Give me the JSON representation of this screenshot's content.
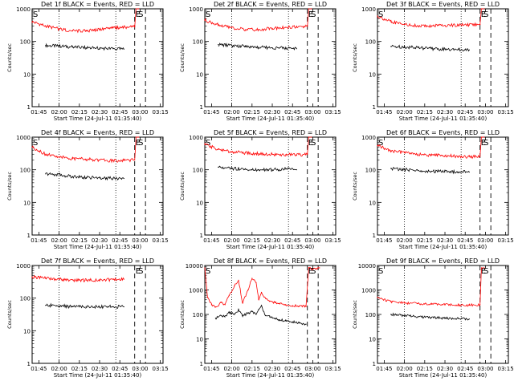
{
  "figure": {
    "shared": {
      "xlabel": "Start Time (24-Jul-11 01:35:40)",
      "ylabel": "Counts/sec",
      "xticks": [
        "01:45",
        "02:00",
        "02:15",
        "02:30",
        "02:45",
        "03:00",
        "03:15"
      ],
      "markers": {
        "start": "S",
        "end": "E"
      },
      "colors": {
        "events": "#000000",
        "lld": "#ff0000",
        "axes": "#000000"
      }
    }
  },
  "chart_data": [
    {
      "type": "line",
      "title": "Det 1f BLACK = Events, RED = LLD",
      "xlabel": "Start Time (24-Jul-11 01:35:40)",
      "ylabel": "Counts/sec",
      "yscale": "log",
      "ylim": [
        1,
        1000
      ],
      "yticks": [
        "1",
        "10",
        "100",
        "1000"
      ],
      "xticks": [
        "01:45",
        "02:00",
        "02:15",
        "02:30",
        "02:45",
        "03:00",
        "03:15"
      ],
      "x_minutes_after_0130": [
        15,
        30,
        45,
        60,
        75,
        90,
        105
      ],
      "dotted_lines_min": [
        30,
        72
      ],
      "dashed_lines_min": [
        10,
        86,
        94
      ],
      "markers": [
        {
          "label": "S",
          "x": 10
        },
        {
          "label": "E",
          "x": 86
        },
        {
          "label": "S",
          "x": 88
        }
      ],
      "series": [
        {
          "name": "Events",
          "color": "#000000",
          "x": [
            20,
            30,
            40,
            50,
            60,
            70,
            78
          ],
          "y": [
            75,
            72,
            68,
            64,
            62,
            60,
            58
          ]
        },
        {
          "name": "LLD",
          "color": "#ff0000",
          "x": [
            10,
            20,
            30,
            40,
            50,
            60,
            70,
            78,
            86,
            87,
            89
          ],
          "y": [
            400,
            300,
            240,
            210,
            210,
            230,
            260,
            270,
            280,
            1000,
            1000
          ]
        }
      ]
    },
    {
      "type": "line",
      "title": "Det 2f BLACK = Events, RED = LLD",
      "xlabel": "Start Time (24-Jul-11 01:35:40)",
      "ylabel": "Counts/sec",
      "yscale": "log",
      "ylim": [
        1,
        1000
      ],
      "yticks": [
        "1",
        "10",
        "100",
        "1000"
      ],
      "xticks": [
        "01:45",
        "02:00",
        "02:15",
        "02:30",
        "02:45",
        "03:00",
        "03:15"
      ],
      "x_minutes_after_0130": [
        15,
        30,
        45,
        60,
        75,
        90,
        105
      ],
      "dotted_lines_min": [
        30,
        72
      ],
      "dashed_lines_min": [
        10,
        86,
        94
      ],
      "markers": [
        {
          "label": "S",
          "x": 10
        },
        {
          "label": "E",
          "x": 86
        },
        {
          "label": "S",
          "x": 88
        }
      ],
      "series": [
        {
          "name": "Events",
          "color": "#000000",
          "x": [
            20,
            30,
            40,
            50,
            60,
            70,
            78
          ],
          "y": [
            80,
            75,
            70,
            66,
            64,
            62,
            60
          ]
        },
        {
          "name": "LLD",
          "color": "#ff0000",
          "x": [
            10,
            20,
            30,
            40,
            50,
            60,
            70,
            78,
            86,
            87,
            89
          ],
          "y": [
            450,
            320,
            260,
            230,
            230,
            250,
            270,
            280,
            290,
            1000,
            1000
          ]
        }
      ]
    },
    {
      "type": "line",
      "title": "Det 3f BLACK = Events, RED = LLD",
      "xlabel": "Start Time (24-Jul-11 01:35:40)",
      "ylabel": "Counts/sec",
      "yscale": "log",
      "ylim": [
        1,
        1000
      ],
      "yticks": [
        "1",
        "10",
        "100",
        "1000"
      ],
      "xticks": [
        "01:45",
        "02:00",
        "02:15",
        "02:30",
        "02:45",
        "03:00",
        "03:15"
      ],
      "x_minutes_after_0130": [
        15,
        30,
        45,
        60,
        75,
        90,
        105
      ],
      "dotted_lines_min": [
        30,
        72
      ],
      "dashed_lines_min": [
        10,
        86,
        94
      ],
      "markers": [
        {
          "label": "S",
          "x": 10
        },
        {
          "label": "E",
          "x": 86
        },
        {
          "label": "S",
          "x": 88
        }
      ],
      "series": [
        {
          "name": "Events",
          "color": "#000000",
          "x": [
            20,
            30,
            40,
            50,
            60,
            70,
            78
          ],
          "y": [
            70,
            68,
            64,
            60,
            58,
            57,
            55
          ]
        },
        {
          "name": "LLD",
          "color": "#ff0000",
          "x": [
            10,
            20,
            30,
            40,
            50,
            60,
            70,
            78,
            86,
            87,
            89
          ],
          "y": [
            600,
            400,
            330,
            300,
            300,
            310,
            320,
            320,
            330,
            1000,
            1000
          ]
        }
      ]
    },
    {
      "type": "line",
      "title": "Det 4f BLACK = Events, RED = LLD",
      "xlabel": "Start Time (24-Jul-11 01:35:40)",
      "ylabel": "Counts/sec",
      "yscale": "log",
      "ylim": [
        1,
        1000
      ],
      "yticks": [
        "1",
        "10",
        "100",
        "1000"
      ],
      "xticks": [
        "01:45",
        "02:00",
        "02:15",
        "02:30",
        "02:45",
        "03:00",
        "03:15"
      ],
      "x_minutes_after_0130": [
        15,
        30,
        45,
        60,
        75,
        90,
        105
      ],
      "dotted_lines_min": [
        30,
        72
      ],
      "dashed_lines_min": [
        10,
        86,
        94
      ],
      "markers": [
        {
          "label": "S",
          "x": 10
        },
        {
          "label": "E",
          "x": 86
        },
        {
          "label": "S",
          "x": 88
        }
      ],
      "series": [
        {
          "name": "Events",
          "color": "#000000",
          "x": [
            20,
            30,
            40,
            50,
            60,
            70,
            78
          ],
          "y": [
            75,
            70,
            62,
            58,
            56,
            55,
            54
          ]
        },
        {
          "name": "LLD",
          "color": "#ff0000",
          "x": [
            10,
            20,
            30,
            40,
            50,
            60,
            70,
            78,
            86,
            87,
            89
          ],
          "y": [
            500,
            300,
            250,
            220,
            210,
            200,
            190,
            190,
            200,
            1000,
            1000
          ]
        }
      ]
    },
    {
      "type": "line",
      "title": "Det 5f BLACK = Events, RED = LLD",
      "xlabel": "Start Time (24-Jul-11 01:35:40)",
      "ylabel": "Counts/sec",
      "yscale": "log",
      "ylim": [
        1,
        1000
      ],
      "yticks": [
        "1",
        "10",
        "100",
        "1000"
      ],
      "xticks": [
        "01:45",
        "02:00",
        "02:15",
        "02:30",
        "02:45",
        "03:00",
        "03:15"
      ],
      "x_minutes_after_0130": [
        15,
        30,
        45,
        60,
        75,
        90,
        105
      ],
      "dotted_lines_min": [
        30,
        72
      ],
      "dashed_lines_min": [
        10,
        86,
        94
      ],
      "markers": [
        {
          "label": "S",
          "x": 10
        },
        {
          "label": "E",
          "x": 86
        },
        {
          "label": "S",
          "x": 88
        }
      ],
      "series": [
        {
          "name": "Events",
          "color": "#000000",
          "x": [
            20,
            30,
            40,
            50,
            60,
            70,
            78
          ],
          "y": [
            120,
            110,
            105,
            100,
            100,
            105,
            100
          ]
        },
        {
          "name": "LLD",
          "color": "#ff0000",
          "x": [
            10,
            20,
            30,
            40,
            50,
            60,
            70,
            78,
            86,
            87,
            89
          ],
          "y": [
            600,
            420,
            360,
            330,
            310,
            300,
            290,
            280,
            300,
            1000,
            1000
          ]
        }
      ]
    },
    {
      "type": "line",
      "title": "Det 6f BLACK = Events, RED = LLD",
      "xlabel": "Start Time (24-Jul-11 01:35:40)",
      "ylabel": "Counts/sec",
      "yscale": "log",
      "ylim": [
        1,
        1000
      ],
      "yticks": [
        "1",
        "10",
        "100",
        "1000"
      ],
      "xticks": [
        "01:45",
        "02:00",
        "02:15",
        "02:30",
        "02:45",
        "03:00",
        "03:15"
      ],
      "x_minutes_after_0130": [
        15,
        30,
        45,
        60,
        75,
        90,
        105
      ],
      "dotted_lines_min": [
        30,
        72
      ],
      "dashed_lines_min": [
        10,
        86,
        94
      ],
      "markers": [
        {
          "label": "S",
          "x": 10
        },
        {
          "label": "E",
          "x": 86
        },
        {
          "label": "S",
          "x": 88
        }
      ],
      "series": [
        {
          "name": "Events",
          "color": "#000000",
          "x": [
            20,
            30,
            40,
            50,
            60,
            70,
            78
          ],
          "y": [
            110,
            100,
            95,
            90,
            88,
            86,
            85
          ]
        },
        {
          "name": "LLD",
          "color": "#ff0000",
          "x": [
            10,
            20,
            30,
            40,
            50,
            60,
            70,
            78,
            86,
            87,
            89
          ],
          "y": [
            550,
            380,
            330,
            300,
            280,
            270,
            260,
            250,
            260,
            1000,
            1000
          ]
        }
      ]
    },
    {
      "type": "line",
      "title": "Det 7f BLACK = Events, RED = LLD",
      "xlabel": "Start Time (24-Jul-11 01:35:40)",
      "ylabel": "Counts/sec",
      "yscale": "log",
      "ylim": [
        1,
        1000
      ],
      "yticks": [
        "1",
        "10",
        "100",
        "1000"
      ],
      "xticks": [
        "01:45",
        "02:00",
        "02:15",
        "02:30",
        "02:45",
        "03:00",
        "03:15"
      ],
      "x_minutes_after_0130": [
        15,
        30,
        45,
        60,
        75,
        90,
        105
      ],
      "dotted_lines_min": [
        30,
        72
      ],
      "dashed_lines_min": [
        10,
        86,
        94
      ],
      "markers": [
        {
          "label": "E",
          "x": 86
        },
        {
          "label": "S",
          "x": 88
        }
      ],
      "series": [
        {
          "name": "Events",
          "color": "#000000",
          "x": [
            20,
            30,
            40,
            50,
            60,
            70,
            78
          ],
          "y": [
            60,
            58,
            55,
            55,
            54,
            55,
            54
          ]
        },
        {
          "name": "LLD",
          "color": "#ff0000",
          "x": [
            10,
            20,
            30,
            40,
            50,
            60,
            70,
            78
          ],
          "y": [
            450,
            400,
            380,
            360,
            350,
            360,
            370,
            380
          ]
        }
      ]
    },
    {
      "type": "line",
      "title": "Det 8f BLACK = Events, RED = LLD",
      "xlabel": "Start Time (24-Jul-11 01:35:40)",
      "ylabel": "Counts/sec",
      "yscale": "log",
      "ylim": [
        1,
        10000
      ],
      "yticks": [
        "1",
        "10",
        "100",
        "1000",
        "10000"
      ],
      "xticks": [
        "01:45",
        "02:00",
        "02:15",
        "02:30",
        "02:45",
        "03:00",
        "03:15"
      ],
      "x_minutes_after_0130": [
        15,
        30,
        45,
        60,
        75,
        90,
        105
      ],
      "dotted_lines_min": [
        30,
        72
      ],
      "dashed_lines_min": [
        10,
        86,
        94
      ],
      "markers": [
        {
          "label": "S",
          "x": 10
        },
        {
          "label": "E",
          "x": 86
        },
        {
          "label": "S",
          "x": 88
        }
      ],
      "series": [
        {
          "name": "Events",
          "color": "#000000",
          "x": [
            18,
            22,
            25,
            28,
            32,
            35,
            38,
            42,
            45,
            48,
            50,
            52,
            55,
            58,
            62,
            65,
            70,
            75,
            80,
            85
          ],
          "y": [
            70,
            90,
            80,
            120,
            100,
            150,
            90,
            110,
            130,
            100,
            160,
            220,
            90,
            80,
            70,
            60,
            55,
            50,
            45,
            40
          ]
        },
        {
          "name": "LLD",
          "color": "#ff0000",
          "x": [
            10,
            12,
            15,
            18,
            22,
            25,
            28,
            32,
            35,
            38,
            42,
            45,
            48,
            50,
            52,
            55,
            58,
            62,
            65,
            70,
            75,
            80,
            85,
            87,
            90,
            95
          ],
          "y": [
            8000,
            500,
            250,
            200,
            300,
            250,
            600,
            1500,
            2500,
            300,
            1000,
            3000,
            2000,
            400,
            800,
            450,
            350,
            300,
            280,
            250,
            230,
            220,
            210,
            8000,
            7000,
            8000
          ]
        }
      ]
    },
    {
      "type": "line",
      "title": "Det 9f BLACK = Events, RED = LLD",
      "xlabel": "Start Time (24-Jul-11 01:35:40)",
      "ylabel": "Counts/sec",
      "yscale": "log",
      "ylim": [
        1,
        10000
      ],
      "yticks": [
        "1",
        "10",
        "100",
        "1000",
        "10000"
      ],
      "xticks": [
        "01:45",
        "02:00",
        "02:15",
        "02:30",
        "02:45",
        "03:00",
        "03:15"
      ],
      "x_minutes_after_0130": [
        15,
        30,
        45,
        60,
        75,
        90,
        105
      ],
      "dotted_lines_min": [
        30,
        72
      ],
      "dashed_lines_min": [
        10,
        86,
        94
      ],
      "markers": [
        {
          "label": "S",
          "x": 10
        },
        {
          "label": "E",
          "x": 86
        },
        {
          "label": "S",
          "x": 88
        }
      ],
      "series": [
        {
          "name": "Events",
          "color": "#000000",
          "x": [
            20,
            30,
            40,
            50,
            60,
            70,
            78
          ],
          "y": [
            100,
            90,
            80,
            75,
            70,
            68,
            65
          ]
        },
        {
          "name": "LLD",
          "color": "#ff0000",
          "x": [
            10,
            20,
            30,
            40,
            50,
            60,
            70,
            78,
            86,
            87,
            89
          ],
          "y": [
            500,
            330,
            290,
            280,
            260,
            250,
            240,
            240,
            250,
            8000,
            8000
          ]
        }
      ]
    }
  ]
}
